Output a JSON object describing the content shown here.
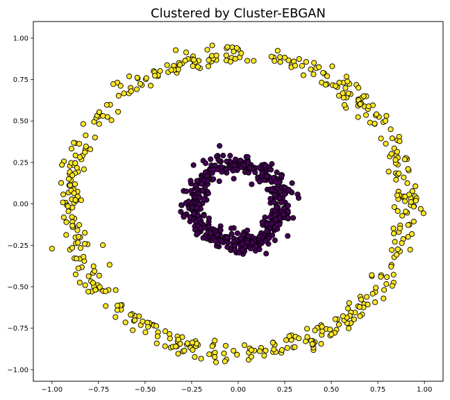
{
  "chart_data": {
    "type": "scatter",
    "title": "Clustered by Cluster-EBGAN",
    "xlabel": "",
    "ylabel": "",
    "xlim": [
      -1.1,
      1.1
    ],
    "ylim": [
      -1.07,
      1.1
    ],
    "x_ticks": [
      -1.0,
      -0.75,
      -0.5,
      -0.25,
      0.0,
      0.25,
      0.5,
      0.75,
      1.0
    ],
    "x_tick_labels": [
      "−1.00",
      "−0.75",
      "−0.50",
      "−0.25",
      "0.00",
      "0.25",
      "0.50",
      "0.75",
      "1.00"
    ],
    "y_ticks": [
      1.0,
      0.75,
      0.5,
      0.25,
      0.0,
      -0.25,
      -0.5,
      -0.75,
      -1.0
    ],
    "y_tick_labels": [
      "1.00",
      "0.75",
      "0.50",
      "0.25",
      "0.00",
      "−0.25",
      "−0.50",
      "−0.75",
      "−1.00"
    ],
    "grid": false,
    "legend": "none",
    "series": [
      {
        "cluster": "outer-ring",
        "color": "#fde725",
        "edgecolor": "#000000",
        "shape": "ring",
        "center": [
          0.0,
          0.0
        ],
        "radius": 0.9,
        "radius_spread": 0.06,
        "count": 500,
        "extra_points": [
          [
            -1.0,
            -0.27
          ],
          [
            0.98,
            -0.03
          ]
        ]
      },
      {
        "cluster": "inner-ring",
        "color": "#440154",
        "edgecolor": "#000000",
        "shape": "ring",
        "center": [
          0.0,
          0.0
        ],
        "radius": 0.24,
        "radius_spread": 0.055,
        "count": 500,
        "extra_points": [
          [
            -0.1,
            0.35
          ],
          [
            0.15,
            -0.3
          ]
        ]
      }
    ]
  }
}
